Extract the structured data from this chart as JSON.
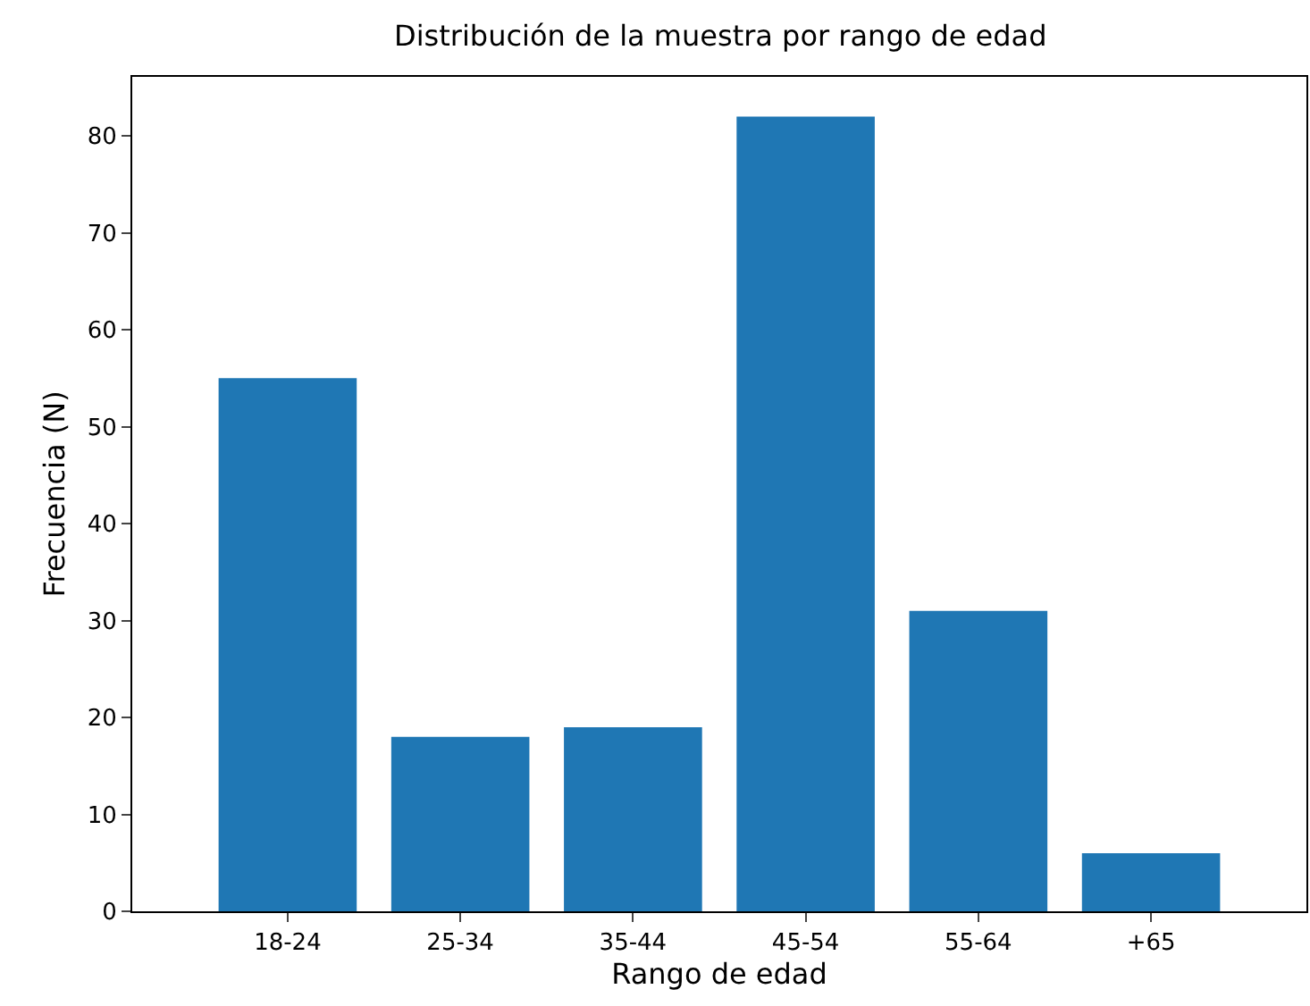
{
  "chart_data": {
    "type": "bar",
    "title": "Distribución de la muestra por rango de edad",
    "xlabel": "Rango de edad",
    "ylabel": "Frecuencia (N)",
    "categories": [
      "18-24",
      "25-34",
      "35-44",
      "45-54",
      "55-64",
      "+65"
    ],
    "values": [
      55,
      18,
      19,
      82,
      31,
      6
    ],
    "color": "#1f77b4",
    "ylim": [
      0,
      86.1
    ],
    "yticks": [
      0,
      10,
      20,
      30,
      40,
      50,
      60,
      70,
      80
    ]
  }
}
